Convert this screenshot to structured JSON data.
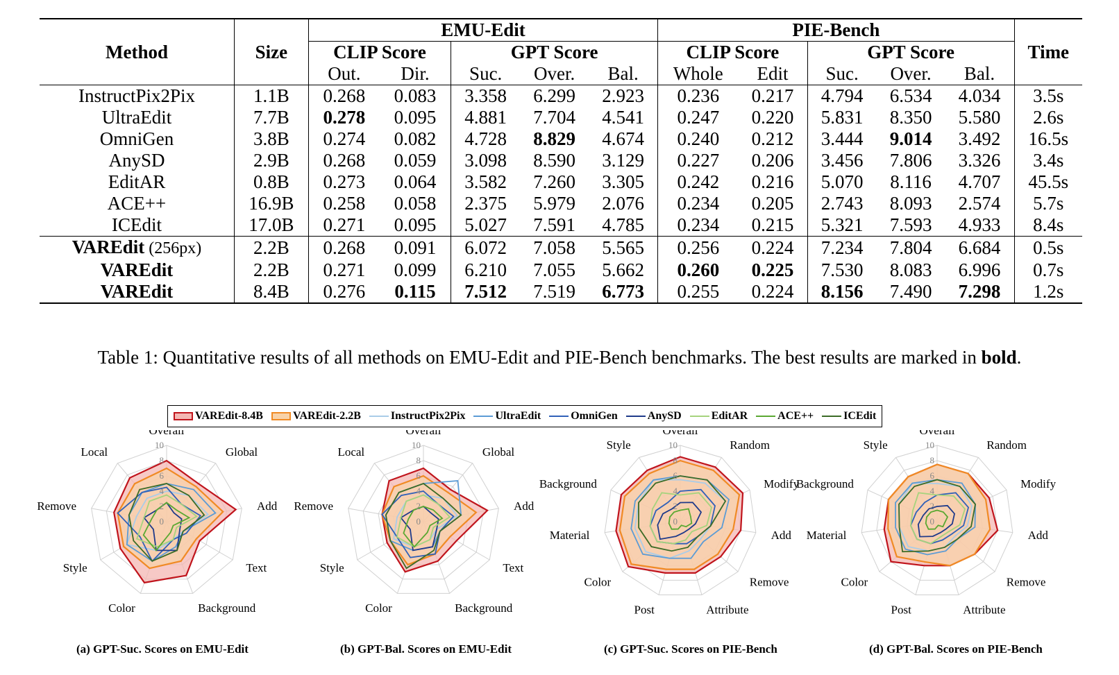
{
  "table": {
    "headers": {
      "method": "Method",
      "size": "Size",
      "time": "Time",
      "emu": "EMU-Edit",
      "pie": "PIE-Bench",
      "clip": "CLIP Score",
      "gpt": "GPT Score",
      "out": "Out.",
      "dir": "Dir.",
      "suc": "Suc.",
      "over": "Over.",
      "bal": "Bal.",
      "whole": "Whole",
      "edit": "Edit"
    },
    "rows": [
      {
        "method": "InstructPix2Pix",
        "suffix": "",
        "size": "1.1B",
        "values": [
          "0.268",
          "0.083",
          "3.358",
          "6.299",
          "2.923",
          "0.236",
          "0.217",
          "4.794",
          "6.534",
          "4.034"
        ],
        "time": "3.5s",
        "bold": []
      },
      {
        "method": "UltraEdit",
        "suffix": "",
        "size": "7.7B",
        "values": [
          "0.278",
          "0.095",
          "4.881",
          "7.704",
          "4.541",
          "0.247",
          "0.220",
          "5.831",
          "8.350",
          "5.580"
        ],
        "time": "2.6s",
        "bold": [
          0
        ]
      },
      {
        "method": "OmniGen",
        "suffix": "",
        "size": "3.8B",
        "values": [
          "0.274",
          "0.082",
          "4.728",
          "8.829",
          "4.674",
          "0.240",
          "0.212",
          "3.444",
          "9.014",
          "3.492"
        ],
        "time": "16.5s",
        "bold": [
          3,
          8
        ]
      },
      {
        "method": "AnySD",
        "suffix": "",
        "size": "2.9B",
        "values": [
          "0.268",
          "0.059",
          "3.098",
          "8.590",
          "3.129",
          "0.227",
          "0.206",
          "3.456",
          "7.806",
          "3.326"
        ],
        "time": "3.4s",
        "bold": []
      },
      {
        "method": "EditAR",
        "suffix": "",
        "size": "0.8B",
        "values": [
          "0.273",
          "0.064",
          "3.582",
          "7.260",
          "3.305",
          "0.242",
          "0.216",
          "5.070",
          "8.116",
          "4.707"
        ],
        "time": "45.5s",
        "bold": []
      },
      {
        "method": "ACE++",
        "suffix": "",
        "size": "16.9B",
        "values": [
          "0.258",
          "0.058",
          "2.375",
          "5.979",
          "2.076",
          "0.234",
          "0.205",
          "2.743",
          "8.093",
          "2.574"
        ],
        "time": "5.7s",
        "bold": []
      },
      {
        "method": "ICEdit",
        "suffix": "",
        "size": "17.0B",
        "values": [
          "0.271",
          "0.095",
          "5.027",
          "7.591",
          "4.785",
          "0.234",
          "0.215",
          "5.321",
          "7.593",
          "4.933"
        ],
        "time": "8.4s",
        "bold": []
      },
      {
        "method": "VAREdit",
        "suffix": " (256px)",
        "size": "2.2B",
        "values": [
          "0.268",
          "0.091",
          "6.072",
          "7.058",
          "5.565",
          "0.256",
          "0.224",
          "7.234",
          "7.804",
          "6.684"
        ],
        "time": "0.5s",
        "bold": []
      },
      {
        "method": "VAREdit",
        "suffix": "",
        "size": "2.2B",
        "values": [
          "0.271",
          "0.099",
          "6.210",
          "7.055",
          "5.662",
          "0.260",
          "0.225",
          "7.530",
          "8.083",
          "6.996"
        ],
        "time": "0.7s",
        "bold": [
          5,
          6
        ]
      },
      {
        "method": "VAREdit",
        "suffix": "",
        "size": "8.4B",
        "values": [
          "0.276",
          "0.115",
          "7.512",
          "7.519",
          "6.773",
          "0.255",
          "0.224",
          "8.156",
          "7.490",
          "7.298"
        ],
        "time": "1.2s",
        "bold": [
          1,
          2,
          4,
          7,
          9
        ]
      }
    ]
  },
  "caption": {
    "prefix": "Table 1: Quantitative results of all methods on EMU-Edit and PIE-Bench benchmarks. The best results are marked in ",
    "bold": "bold",
    "suffix": "."
  },
  "legend": [
    {
      "name": "VAREdit-8.4B",
      "color": "#c0141c",
      "fill": "#f4b7b3",
      "filled": true
    },
    {
      "name": "VAREdit-2.2B",
      "color": "#f08a24",
      "fill": "#f8d2a8",
      "filled": true
    },
    {
      "name": "InstructPix2Pix",
      "color": "#a9cce8",
      "filled": false
    },
    {
      "name": "UltraEdit",
      "color": "#5b9bd5",
      "filled": false
    },
    {
      "name": "OmniGen",
      "color": "#3060b8",
      "filled": false
    },
    {
      "name": "AnySD",
      "color": "#1f3a8a",
      "filled": false
    },
    {
      "name": "EditAR",
      "color": "#a6d37d",
      "filled": false
    },
    {
      "name": "ACE++",
      "color": "#5aa832",
      "filled": false
    },
    {
      "name": "ICEdit",
      "color": "#3b6b26",
      "filled": false
    }
  ],
  "chart_data": [
    {
      "type": "radar",
      "title": "(a) GPT-Suc. Scores on EMU-Edit",
      "axes": [
        "Overall",
        "Global",
        "Add",
        "Text",
        "Background",
        "Color",
        "Style",
        "Remove",
        "Local"
      ],
      "range": [
        0,
        10
      ],
      "ticks": [
        "0",
        "2",
        "4",
        "6",
        "8",
        "10"
      ],
      "series": [
        {
          "name": "VAREdit-8.4B",
          "values": [
            8,
            6.5,
            9.2,
            5,
            7.5,
            8.5,
            7,
            7,
            7.5
          ]
        },
        {
          "name": "VAREdit-2.2B",
          "values": [
            7,
            6,
            7.5,
            4.5,
            5.5,
            6.5,
            6.5,
            6.5,
            6.5
          ]
        },
        {
          "name": "InstructPix2Pix",
          "values": [
            4,
            4.5,
            5.5,
            2.5,
            2.5,
            4,
            6,
            4,
            4
          ]
        },
        {
          "name": "UltraEdit",
          "values": [
            5,
            5.5,
            6.5,
            2.5,
            3.5,
            5.5,
            6,
            5,
            5
          ]
        },
        {
          "name": "OmniGen",
          "values": [
            4.5,
            3,
            4.5,
            3,
            2.5,
            5.5,
            4,
            6.5,
            5
          ]
        },
        {
          "name": "AnySD",
          "values": [
            2.5,
            1.5,
            2,
            2,
            4,
            4,
            2,
            3,
            2
          ]
        },
        {
          "name": "EditAR",
          "values": [
            3.5,
            3,
            4,
            1.5,
            2.5,
            3.5,
            4.5,
            3,
            3.5
          ]
        },
        {
          "name": "ACE++",
          "values": [
            2.5,
            2,
            3,
            1,
            1.5,
            4,
            3.5,
            2,
            2
          ]
        },
        {
          "name": "ICEdit",
          "values": [
            5,
            4.5,
            5,
            2.5,
            4,
            5.5,
            5,
            5,
            5.5
          ]
        }
      ]
    },
    {
      "type": "radar",
      "title": "(b) GPT-Bal. Scores on EMU-Edit",
      "axes": [
        "Overall",
        "Global",
        "Add",
        "Text",
        "Background",
        "Color",
        "Style",
        "Remove",
        "Local"
      ],
      "range": [
        0,
        10
      ],
      "ticks": [
        "0",
        "2",
        "4",
        "6",
        "8",
        "10"
      ],
      "series": [
        {
          "name": "VAREdit-8.4B",
          "values": [
            7,
            5.5,
            8.5,
            5,
            5.5,
            7,
            5.5,
            5.5,
            7
          ]
        },
        {
          "name": "VAREdit-2.2B",
          "values": [
            6,
            5,
            7,
            4,
            4.5,
            6,
            5,
            5.5,
            6
          ]
        },
        {
          "name": "InstructPix2Pix",
          "values": [
            3.5,
            4,
            4.5,
            2,
            2.5,
            3.5,
            4.5,
            3.5,
            3.5
          ]
        },
        {
          "name": "UltraEdit",
          "values": [
            5,
            7,
            5,
            2.5,
            3.5,
            4,
            5,
            5,
            5
          ]
        },
        {
          "name": "OmniGen",
          "values": [
            4,
            3,
            4,
            2.5,
            4.5,
            5,
            4,
            5.5,
            4.5
          ]
        },
        {
          "name": "AnySD",
          "values": [
            2,
            1.5,
            2,
            2,
            3.5,
            4,
            2,
            3,
            2
          ]
        },
        {
          "name": "EditAR",
          "values": [
            3.5,
            3,
            3.5,
            1.5,
            2.5,
            3.5,
            4,
            3,
            3.5
          ]
        },
        {
          "name": "ACE++",
          "values": [
            2,
            2,
            2.5,
            1,
            1.5,
            3.5,
            3,
            2,
            2
          ]
        },
        {
          "name": "ICEdit",
          "values": [
            5,
            4,
            5,
            2.5,
            4,
            6.5,
            5,
            5,
            5
          ]
        }
      ]
    },
    {
      "type": "radar",
      "title": "(c) GPT-Suc. Scores on PIE-Bench",
      "axes": [
        "Overall",
        "Random",
        "Modify",
        "Add",
        "Remove",
        "Attribute",
        "Post",
        "Color",
        "Material",
        "Background",
        "Style"
      ],
      "range": [
        0,
        10
      ],
      "ticks": [
        "0",
        "2",
        "4",
        "6",
        "8",
        "10"
      ],
      "series": [
        {
          "name": "VAREdit-8.4B",
          "values": [
            8.5,
            8.5,
            9,
            8,
            7,
            7,
            7,
            9,
            8.5,
            8.5,
            8
          ]
        },
        {
          "name": "VAREdit-2.2B",
          "values": [
            8,
            8,
            8.5,
            7,
            6.5,
            6.5,
            6.5,
            8.5,
            8,
            8,
            7.5
          ]
        },
        {
          "name": "InstructPix2Pix",
          "values": [
            5.5,
            6,
            6.5,
            4,
            3.5,
            4,
            5,
            6,
            6,
            6,
            6.5
          ]
        },
        {
          "name": "UltraEdit",
          "values": [
            6,
            6.5,
            7,
            5.5,
            4,
            5,
            5,
            6.5,
            6.5,
            6.5,
            6.5
          ]
        },
        {
          "name": "OmniGen",
          "values": [
            4,
            5,
            5,
            4,
            3,
            3,
            3,
            4,
            4,
            3.5,
            3
          ]
        },
        {
          "name": "AnySD",
          "values": [
            2.5,
            3,
            3,
            2,
            1.5,
            1.5,
            2,
            3.5,
            3,
            2.5,
            2
          ]
        },
        {
          "name": "EditAR",
          "values": [
            3.5,
            4.5,
            4.5,
            3.5,
            2,
            2.5,
            3,
            4,
            4,
            4,
            4.5
          ]
        },
        {
          "name": "ACE++",
          "values": [
            1.5,
            2,
            1.5,
            1.5,
            1,
            0.5,
            1,
            1.5,
            1.5,
            1.5,
            1.5
          ]
        },
        {
          "name": "ICEdit",
          "values": [
            6,
            6.5,
            6.5,
            4,
            3,
            3.5,
            4,
            5,
            5.5,
            6,
            6
          ]
        }
      ]
    },
    {
      "type": "radar",
      "title": "(d) GPT-Bal. Scores on PIE-Bench",
      "axes": [
        "Overall",
        "Random",
        "Modify",
        "Add",
        "Remove",
        "Attribute",
        "Post",
        "Color",
        "Material",
        "Background",
        "Style"
      ],
      "range": [
        0,
        10
      ],
      "ticks": [
        "0",
        "2",
        "4",
        "6",
        "8",
        "10"
      ],
      "series": [
        {
          "name": "VAREdit-8.4B",
          "values": [
            7.5,
            7.5,
            7.5,
            8,
            6.5,
            6,
            6,
            8,
            7,
            7,
            7
          ]
        },
        {
          "name": "VAREdit-2.2B",
          "values": [
            7.5,
            7.5,
            7,
            7,
            6.5,
            6,
            5.5,
            7,
            6.5,
            7,
            7
          ]
        },
        {
          "name": "InstructPix2Pix",
          "values": [
            5,
            5.5,
            5,
            4,
            3,
            3.5,
            4,
            5,
            5,
            5.5,
            6
          ]
        },
        {
          "name": "UltraEdit",
          "values": [
            5.5,
            6,
            5.5,
            5,
            3.5,
            4,
            4.5,
            5.5,
            5.5,
            6,
            6
          ]
        },
        {
          "name": "OmniGen",
          "values": [
            3.5,
            4.5,
            4.5,
            3.5,
            2.5,
            2.5,
            3,
            3.5,
            3.5,
            3,
            3
          ]
        },
        {
          "name": "AnySD",
          "values": [
            2,
            2.5,
            2.5,
            2,
            1.5,
            1.5,
            2,
            3,
            2.5,
            2,
            2
          ]
        },
        {
          "name": "EditAR",
          "values": [
            3.5,
            4,
            4,
            3,
            2,
            2,
            3,
            3.5,
            3.5,
            3.5,
            4.5
          ]
        },
        {
          "name": "ACE++",
          "values": [
            1.5,
            1.5,
            1.5,
            1,
            1,
            0.5,
            1,
            1.5,
            1.5,
            1.5,
            1.5
          ]
        },
        {
          "name": "ICEdit",
          "values": [
            5.5,
            5.5,
            5.5,
            4.5,
            3.5,
            3.5,
            4,
            6,
            5,
            5.5,
            5.5
          ]
        }
      ]
    }
  ]
}
